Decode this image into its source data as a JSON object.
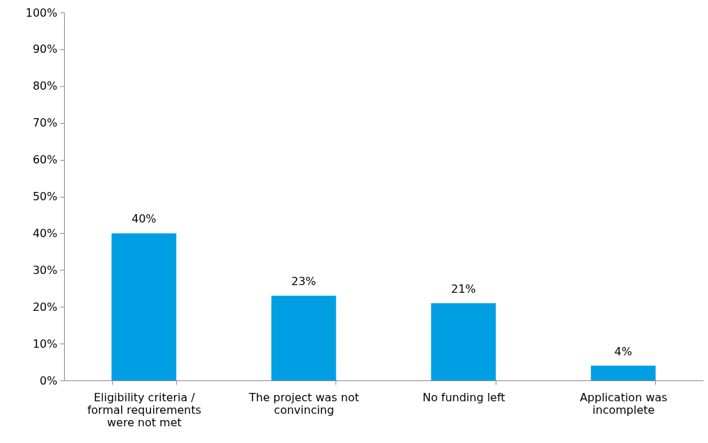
{
  "chart_data": {
    "type": "bar",
    "categories": [
      "Eligibility criteria / formal requirements were not met",
      "The project was not convincing",
      "No funding left",
      "Application was incomplete"
    ],
    "values": [
      40,
      23,
      21,
      4
    ],
    "color": "#009fe3",
    "data_labels": true,
    "value_labels": [
      "40%",
      "23%",
      "21%",
      "4%"
    ],
    "ylim": [
      0,
      100
    ],
    "yticks": [
      {
        "value": 0,
        "label": "0%"
      },
      {
        "value": 10,
        "label": "10%"
      },
      {
        "value": 20,
        "label": "20%"
      },
      {
        "value": 30,
        "label": "30%"
      },
      {
        "value": 40,
        "label": "40%"
      },
      {
        "value": 50,
        "label": "50%"
      },
      {
        "value": 60,
        "label": "60%"
      },
      {
        "value": 70,
        "label": "70%"
      },
      {
        "value": 80,
        "label": "80%"
      },
      {
        "value": 90,
        "label": "90%"
      },
      {
        "value": 100,
        "label": "100%"
      }
    ],
    "grid": false
  }
}
